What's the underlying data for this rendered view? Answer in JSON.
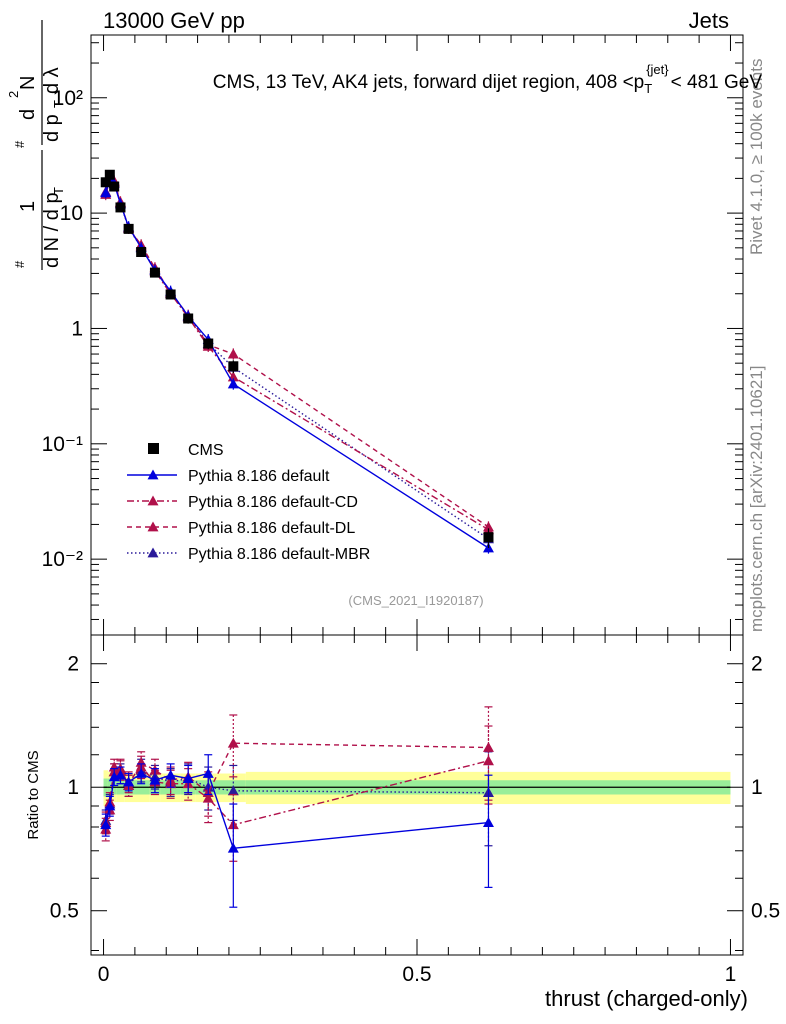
{
  "header": {
    "energy_label": "13000 GeV pp",
    "category_label": "Jets",
    "side_label_top": "Rivet 4.1.0, ≥ 100k events",
    "side_label_bottom": "mcplots.cern.ch [arXiv:2401.10621]"
  },
  "upper": {
    "title_main": "CMS, 13 TeV, AK4 jets, forward dijet region, 408 <p",
    "title_sub": "T",
    "title_sup": "{jet}",
    "title_tail": "< 481 GeV",
    "analysis_id": "(CMS_2021_I1920187)",
    "ylabel": "1/N dN/dp_T dλ",
    "ytick_labels": [
      "10⁻²",
      "10⁻¹",
      "1",
      "10",
      "10²"
    ]
  },
  "lower": {
    "ylabel": "Ratio to CMS",
    "ytick_labels": [
      "0.5",
      "1",
      "2"
    ],
    "xtick_labels": [
      "0",
      "0.5",
      "1"
    ],
    "xlabel": "thrust (charged-only)"
  },
  "legend": [
    {
      "name": "CMS",
      "color": "#000000",
      "style": "square"
    },
    {
      "name": "Pythia 8.186 default",
      "color": "#0000dd",
      "style": "solid"
    },
    {
      "name": "Pythia 8.186 default-CD",
      "color": "#b0104a",
      "style": "dashdot"
    },
    {
      "name": "Pythia 8.186 default-DL",
      "color": "#b0104a",
      "style": "dashed"
    },
    {
      "name": "Pythia 8.186 default-MBR",
      "color": "#2a1a9a",
      "style": "dotted"
    }
  ],
  "chart_data": {
    "type": "line",
    "title": "CMS, 13 TeV, AK4 jets, forward dijet region, 408 < pT{jet} < 481 GeV",
    "xlabel": "thrust (charged-only)",
    "ylabel": "1/N dN/dpT dλ",
    "xlim": [
      -0.02,
      1.02
    ],
    "ylim": [
      0.0022,
      350
    ],
    "yscale": "log",
    "ratio_ylim": [
      0.39,
      2.35
    ],
    "x": [
      0.0035,
      0.01,
      0.017,
      0.027,
      0.04,
      0.06,
      0.082,
      0.107,
      0.135,
      0.167,
      0.207,
      0.614
    ],
    "series": [
      {
        "name": "CMS",
        "values": [
          18.5,
          21.5,
          17.0,
          11.2,
          7.3,
          4.6,
          3.05,
          1.97,
          1.22,
          0.74,
          0.47,
          0.0155
        ],
        "errors": [
          1.5,
          1.6,
          1.2,
          0.8,
          0.5,
          0.35,
          0.25,
          0.17,
          0.12,
          0.08,
          0.06,
          0.003
        ]
      },
      {
        "name": "Pythia 8.186 default",
        "values": [
          15.0,
          19.5,
          18.0,
          12.0,
          7.6,
          5.0,
          3.2,
          2.1,
          1.28,
          0.8,
          0.33,
          0.0125
        ],
        "ratio": [
          0.81,
          0.9,
          1.06,
          1.07,
          1.03,
          1.08,
          1.04,
          1.07,
          1.05,
          1.08,
          0.71,
          0.82
        ],
        "ratio_errors": [
          0.05,
          0.05,
          0.05,
          0.05,
          0.05,
          0.06,
          0.07,
          0.07,
          0.08,
          0.12,
          0.2,
          0.25
        ]
      },
      {
        "name": "Pythia 8.186 default-CD",
        "values": [
          14.5,
          19.0,
          18.5,
          12.3,
          7.5,
          5.15,
          3.15,
          2.0,
          1.25,
          0.7,
          0.38,
          0.018
        ],
        "ratio": [
          0.79,
          0.88,
          1.09,
          1.1,
          1.03,
          1.12,
          1.03,
          1.02,
          1.02,
          0.94,
          0.81,
          1.16
        ],
        "ratio_errors": [
          0.05,
          0.05,
          0.05,
          0.06,
          0.06,
          0.07,
          0.07,
          0.08,
          0.09,
          0.12,
          0.15,
          0.25
        ]
      },
      {
        "name": "Pythia 8.186 default-DL",
        "values": [
          15.2,
          19.8,
          19.0,
          12.5,
          7.4,
          5.3,
          3.35,
          2.05,
          1.3,
          0.72,
          0.6,
          0.019
        ],
        "ratio": [
          0.82,
          0.92,
          1.12,
          1.11,
          1.01,
          1.15,
          1.1,
          1.04,
          1.06,
          0.97,
          1.28,
          1.25
        ],
        "ratio_errors": [
          0.05,
          0.05,
          0.05,
          0.06,
          0.06,
          0.07,
          0.07,
          0.08,
          0.09,
          0.12,
          0.22,
          0.32
        ]
      },
      {
        "name": "Pythia 8.186 default-MBR",
        "values": [
          15.3,
          19.6,
          18.6,
          12.1,
          7.4,
          5.05,
          3.25,
          2.02,
          1.28,
          0.74,
          0.46,
          0.015
        ],
        "ratio": [
          0.83,
          0.91,
          1.09,
          1.08,
          1.01,
          1.1,
          1.06,
          1.03,
          1.05,
          1.0,
          0.98,
          0.97
        ],
        "ratio_errors": [
          0.05,
          0.05,
          0.05,
          0.06,
          0.06,
          0.07,
          0.07,
          0.08,
          0.09,
          0.12,
          0.15,
          0.25
        ]
      }
    ],
    "uncertainty_bands": {
      "x_edges": [
        0.0,
        0.007,
        0.013,
        0.021,
        0.033,
        0.047,
        0.073,
        0.091,
        0.123,
        0.147,
        0.227,
        1.0
      ],
      "stat_half_width": [
        0.05,
        0.05,
        0.04,
        0.04,
        0.04,
        0.04,
        0.04,
        0.04,
        0.04,
        0.04,
        0.04,
        0.04
      ],
      "total_half_width": [
        0.1,
        0.09,
        0.08,
        0.08,
        0.08,
        0.08,
        0.08,
        0.08,
        0.08,
        0.08,
        0.09,
        0.09
      ]
    }
  }
}
